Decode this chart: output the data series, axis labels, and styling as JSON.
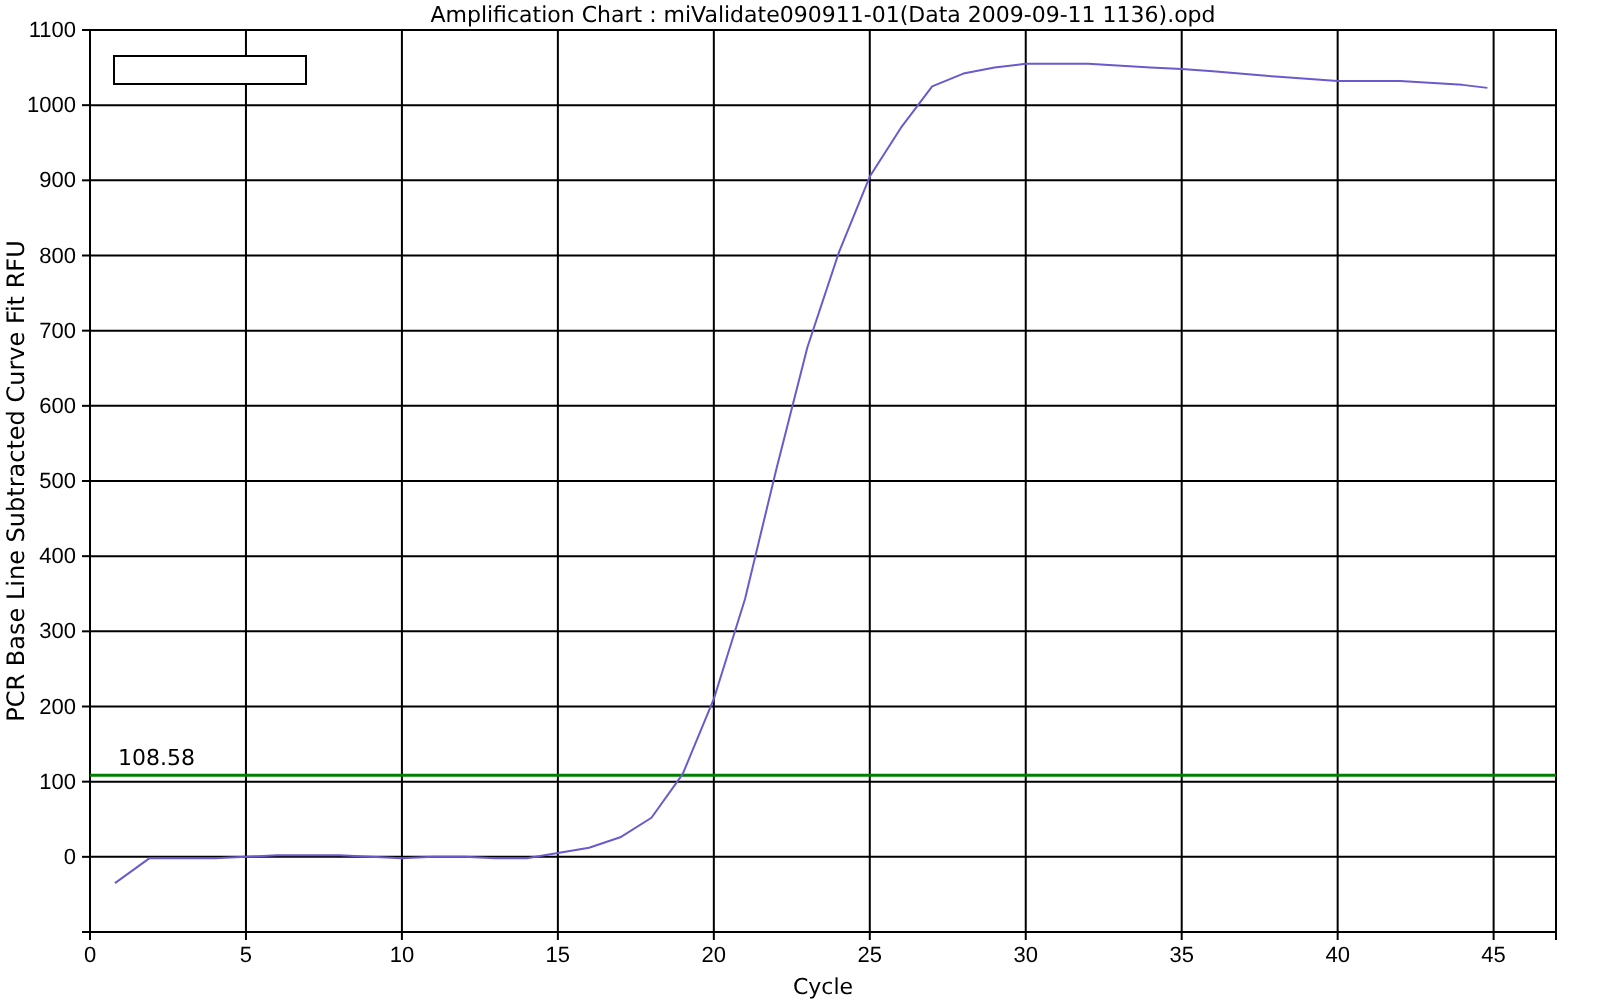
{
  "chart_data": {
    "type": "line",
    "title": "Amplification Chart : miValidate090911-01(Data 2009-09-11 1136).opd",
    "xlabel": "Cycle",
    "ylabel": "PCR Base Line Subtracted Curve Fit RFU",
    "x": [
      0.8,
      1.9,
      3,
      4,
      5,
      6,
      7,
      8,
      9,
      10,
      11,
      12,
      13,
      14,
      15,
      16,
      17,
      18,
      19,
      20,
      21,
      22,
      23,
      24,
      25,
      26,
      27,
      28,
      29,
      30,
      32,
      34,
      35,
      36,
      38,
      40,
      42,
      44,
      44.8
    ],
    "series": [
      {
        "color": "#6a5acd",
        "values": [
          -35,
          -2,
          -2,
          -2,
          0,
          2,
          2,
          2,
          0,
          -2,
          0,
          0,
          -2,
          -2,
          5,
          12,
          26,
          52,
          110,
          210,
          343,
          515,
          678,
          803,
          905,
          970,
          1025,
          1042,
          1050,
          1055,
          1055,
          1050,
          1048,
          1045,
          1038,
          1032,
          1032,
          1027,
          1023
        ]
      }
    ],
    "xlim": [
      0,
      47
    ],
    "xticks": [
      0,
      5,
      10,
      15,
      20,
      25,
      30,
      35,
      40,
      45
    ],
    "ylim": [
      -100,
      1100
    ],
    "yticks": [
      0,
      100,
      200,
      300,
      400,
      500,
      600,
      700,
      800,
      900,
      1000,
      1100
    ],
    "grid": true,
    "ref_lines": [
      {
        "axis": "y",
        "value": 108.58,
        "label": "108.58",
        "color": "#008000"
      }
    ]
  }
}
